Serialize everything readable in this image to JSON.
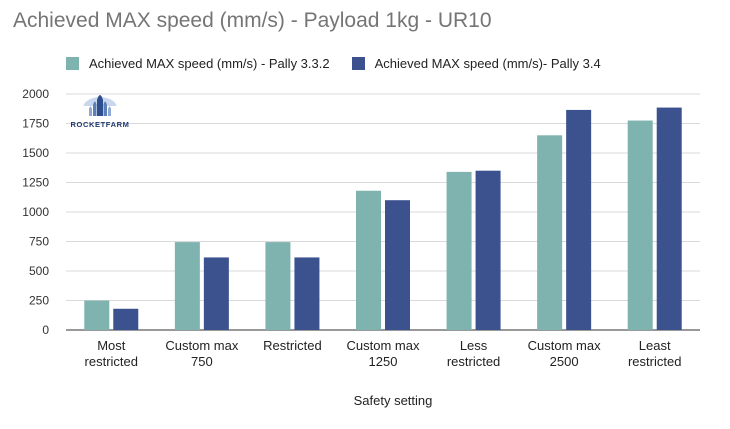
{
  "chart_data": {
    "type": "bar",
    "title": "Achieved MAX speed (mm/s) - Payload 1kg - UR10",
    "xlabel": "Safety setting",
    "ylabel": "",
    "ylim": [
      0,
      2000
    ],
    "yticks": [
      0,
      250,
      500,
      750,
      1000,
      1250,
      1500,
      1750,
      2000
    ],
    "grid": true,
    "legend_position": "top",
    "categories": [
      [
        "Most",
        "restricted"
      ],
      [
        "Custom max",
        "750"
      ],
      [
        "Restricted"
      ],
      [
        "Custom max",
        "1250"
      ],
      [
        "Less",
        "restricted"
      ],
      [
        "Custom max",
        "2500"
      ],
      [
        "Least",
        "restricted"
      ]
    ],
    "series": [
      {
        "name": "Achieved MAX speed (mm/s) - Pally 3.3.2",
        "color": "#7fb3b0",
        "values": [
          250,
          745,
          745,
          1180,
          1340,
          1650,
          1775
        ]
      },
      {
        "name": "Achieved MAX speed (mm/s)- Pally 3.4",
        "color": "#3b528f",
        "values": [
          180,
          615,
          615,
          1100,
          1350,
          1865,
          1885
        ]
      }
    ]
  },
  "logo": {
    "text": "ROCKETFARM",
    "icon": "rocketfarm-logo-icon"
  }
}
